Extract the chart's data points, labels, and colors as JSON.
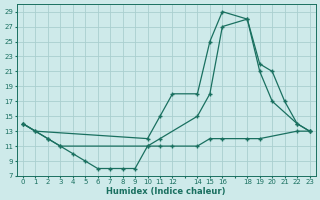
{
  "xlabel": "Humidex (Indice chaleur)",
  "bg_color": "#ceeaea",
  "grid_color": "#aacfcf",
  "line_color": "#1a7060",
  "xlim": [
    -0.5,
    23.5
  ],
  "ylim": [
    7,
    30
  ],
  "yticks": [
    7,
    9,
    11,
    13,
    15,
    17,
    19,
    21,
    23,
    25,
    27,
    29
  ],
  "xtick_labels": [
    "0",
    "1",
    "2",
    "3",
    "4",
    "5",
    "6",
    "7",
    "8",
    "9",
    "10",
    "11",
    "12",
    "",
    "14",
    "15",
    "16",
    "",
    "18",
    "19",
    "20",
    "21",
    "22",
    "23"
  ],
  "series": [
    {
      "x": [
        0,
        1,
        10,
        11,
        12,
        14,
        15,
        16,
        18,
        19,
        20,
        22,
        23
      ],
      "y": [
        14,
        13,
        12,
        15,
        18,
        18,
        25,
        29,
        28,
        21,
        17,
        14,
        13
      ]
    },
    {
      "x": [
        0,
        2,
        3,
        10,
        11,
        14,
        15,
        16,
        18,
        19,
        20,
        21,
        22,
        23
      ],
      "y": [
        14,
        12,
        11,
        11,
        12,
        15,
        18,
        27,
        28,
        22,
        21,
        17,
        14,
        13
      ]
    },
    {
      "x": [
        0,
        1,
        2,
        3,
        4,
        5,
        6,
        7,
        8,
        9,
        10,
        11,
        12,
        14,
        15,
        16,
        18,
        19,
        22,
        23
      ],
      "y": [
        14,
        13,
        12,
        11,
        10,
        9,
        8,
        8,
        8,
        8,
        11,
        11,
        11,
        11,
        12,
        12,
        12,
        12,
        13,
        13
      ]
    }
  ]
}
